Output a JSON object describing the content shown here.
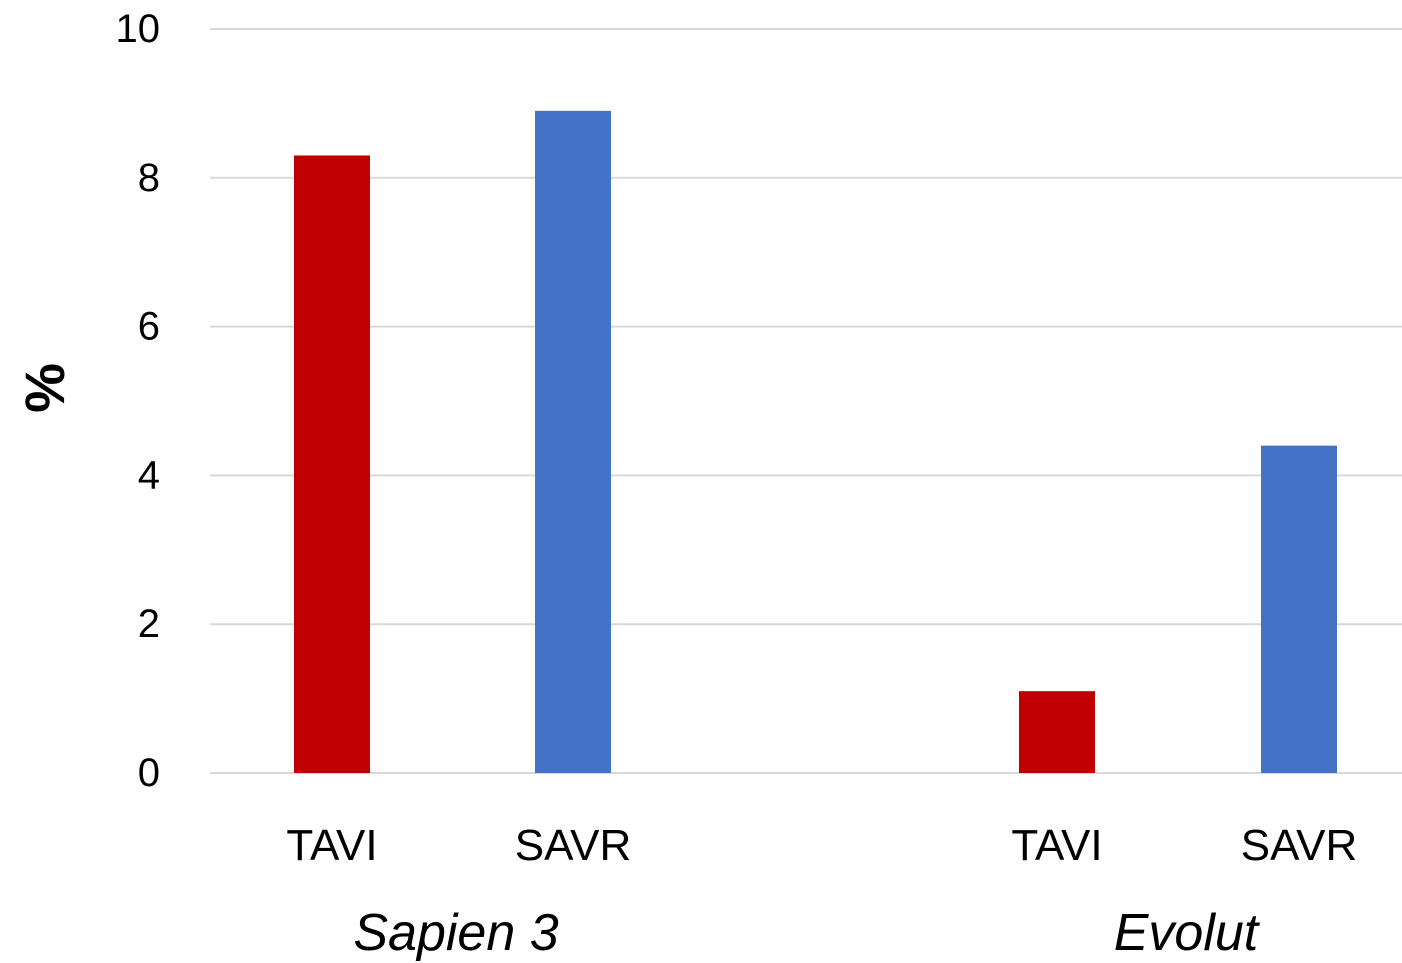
{
  "chart_data": {
    "type": "bar",
    "ylabel": "%",
    "ylim": [
      0,
      10
    ],
    "yticks": [
      0,
      2,
      4,
      6,
      8,
      10
    ],
    "grid": true,
    "groups": [
      {
        "name": "Sapien 3",
        "bars": [
          {
            "category": "TAVI",
            "value": 8.3,
            "color": "#c00000"
          },
          {
            "category": "SAVR",
            "value": 8.9,
            "color": "#4472c4"
          }
        ]
      },
      {
        "name": "Evolut",
        "bars": [
          {
            "category": "TAVI",
            "value": 1.1,
            "color": "#c00000"
          },
          {
            "category": "SAVR",
            "value": 4.4,
            "color": "#4472c4"
          }
        ]
      }
    ]
  }
}
